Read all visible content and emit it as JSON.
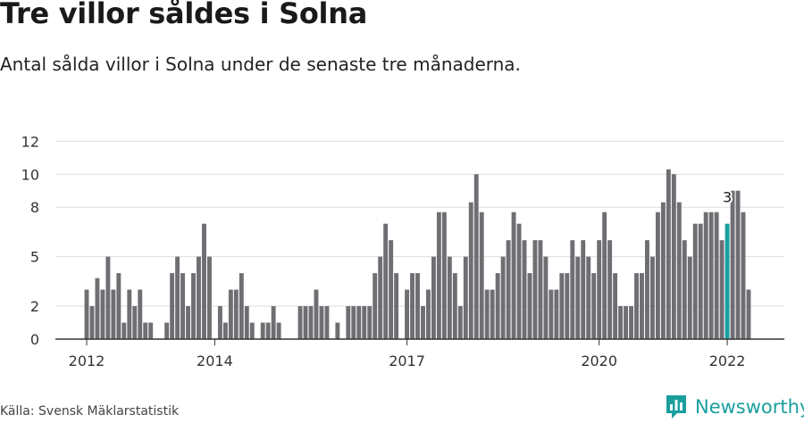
{
  "title": "Tre villor såldes i Solna",
  "subtitle": "Antal sålda villor i Solna under de senaste tre månaderna.",
  "source": "Källa: Svensk Mäklarstatistik",
  "brand": {
    "name": "Newsworthy",
    "logo_icon": "bar-chart-icon"
  },
  "colors": {
    "bar": "#6f6e73",
    "highlight": "#1a9e9e",
    "grid": "#dddddd",
    "axis": "#333333"
  },
  "chart_data": {
    "type": "bar",
    "title": "Tre villor såldes i Solna",
    "subtitle": "Antal sålda villor i Solna under de senaste tre månaderna.",
    "xlabel": "",
    "ylabel": "",
    "ylim": [
      0,
      13
    ],
    "y_ticks": [
      0,
      2,
      5,
      8,
      10,
      12
    ],
    "x_ticks": [
      "2012",
      "2014",
      "2017",
      "2020",
      "2022"
    ],
    "x_tick_month_index": [
      0,
      24,
      60,
      96,
      120
    ],
    "start": "2012-01",
    "end": "2022-01",
    "grid": true,
    "annotation": {
      "index": 120,
      "label": "3"
    },
    "values": [
      3,
      2,
      3.7,
      3,
      5,
      3,
      4,
      1,
      3,
      2,
      3,
      1,
      1,
      0,
      0,
      1,
      4,
      5,
      4,
      2,
      4,
      5,
      7,
      5,
      0,
      2,
      1,
      3,
      3,
      4,
      2,
      1,
      0,
      1,
      1,
      2,
      1,
      0,
      0,
      0,
      2,
      2,
      2,
      3,
      2,
      2,
      0,
      1,
      0,
      2,
      2,
      2,
      2,
      2,
      4,
      5,
      7,
      6,
      4,
      0,
      3,
      4,
      4,
      2,
      3,
      5,
      7.7,
      7.7,
      5,
      4,
      2,
      5,
      8.3,
      10,
      7.7,
      3,
      3,
      4,
      5,
      6,
      7.7,
      7,
      6,
      4,
      6,
      6,
      5,
      3,
      3,
      4,
      4,
      6,
      5,
      6,
      5,
      4,
      6,
      7.7,
      6,
      4,
      2,
      2,
      2,
      4,
      4,
      6,
      5,
      7.7,
      8.3,
      10.3,
      10,
      8.3,
      6,
      5,
      7,
      7,
      7.7,
      7.7,
      7.7,
      6,
      7,
      9,
      9,
      7.7,
      3
    ]
  }
}
